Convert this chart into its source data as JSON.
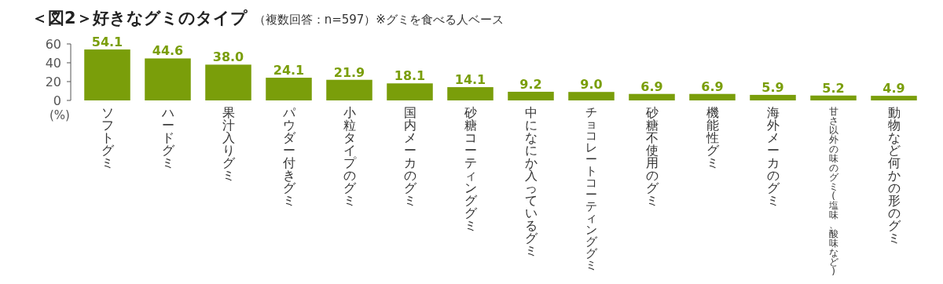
{
  "chart_data": {
    "type": "bar",
    "title": "＜図2＞好きなグミのタイプ",
    "subtitle": "（複数回答：n=597）※グミを食べる人ベース",
    "ylabel": "(%)",
    "categories": [
      "ソフトグミ",
      "ハードグミ",
      "果汁入りグミ",
      "パウダー付きグミ",
      "小粒タイプのグミ",
      "国内メーカのグミ",
      "砂糖コーティンググミ",
      "中になにか入っているグミ",
      "チョコレートコーティンググミ",
      "砂糖不使用のグミ",
      "機能性グミ",
      "海外メーカのグミ",
      "甘さ以外の味のグミ(塩味、酸味など)",
      "動物など何かの形のグミ"
    ],
    "values": [
      54.1,
      44.6,
      38.0,
      24.1,
      21.9,
      18.1,
      14.1,
      9.2,
      9.0,
      6.9,
      6.9,
      5.9,
      5.2,
      4.9
    ],
    "value_labels": [
      "54.1",
      "44.6",
      "38.0",
      "24.1",
      "21.9",
      "18.1",
      "14.1",
      "9.2",
      "9.0",
      "6.9",
      "6.9",
      "5.9",
      "5.2",
      "4.9"
    ],
    "color": "#7a9e0a",
    "ylim": [
      0,
      60
    ],
    "yticks": [
      0,
      20,
      40,
      60
    ],
    "grid": false
  }
}
